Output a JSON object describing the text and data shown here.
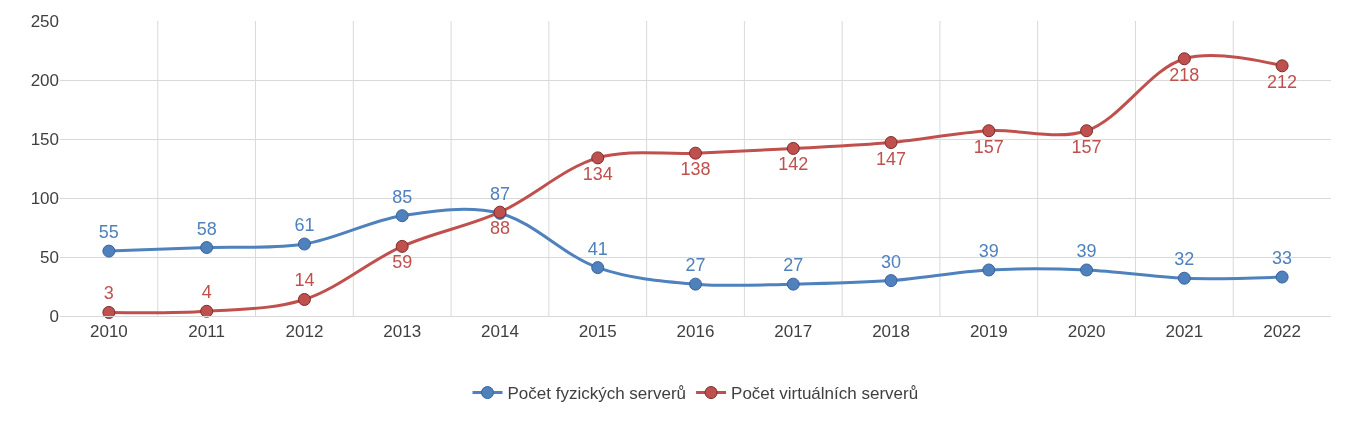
{
  "chart_data": {
    "type": "line",
    "categories": [
      "2010",
      "2011",
      "2012",
      "2013",
      "2014",
      "2015",
      "2016",
      "2017",
      "2018",
      "2019",
      "2020",
      "2021",
      "2022"
    ],
    "series": [
      {
        "name": "Počet fyzických serverů",
        "color": "#4f81bd",
        "values": [
          55,
          58,
          61,
          85,
          87,
          41,
          27,
          27,
          30,
          39,
          39,
          32,
          33
        ]
      },
      {
        "name": "Počet virtuálních serverů",
        "color": "#c0504d",
        "values": [
          3,
          4,
          14,
          59,
          88,
          134,
          138,
          142,
          147,
          157,
          157,
          218,
          212
        ]
      }
    ],
    "ylim": [
      0,
      250
    ],
    "yticks": [
      0,
      50,
      100,
      150,
      200,
      250
    ],
    "grid": true,
    "legend": "bottom",
    "marker": "circle",
    "line_style": "solid",
    "data_labels": true
  }
}
